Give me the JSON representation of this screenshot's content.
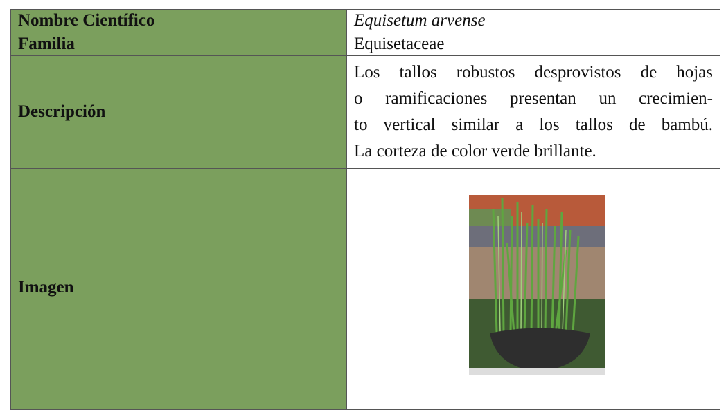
{
  "table": {
    "rows": [
      {
        "label": "Nombre Científico",
        "value": "Equisetum arvense"
      },
      {
        "label": "Familia",
        "value": "Equisetaceae"
      },
      {
        "label": "Descripción",
        "lines": [
          "Los tallos robustos desprovistos de hojas",
          "o ramificaciones presentan un crecimien-",
          "to vertical similar a los tallos de bambú.",
          "La corteza de color verde brillante."
        ]
      },
      {
        "label": "Imagen"
      }
    ]
  }
}
